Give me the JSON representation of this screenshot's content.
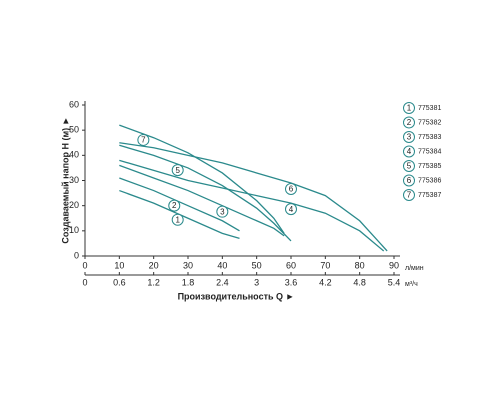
{
  "chart_data": {
    "type": "line",
    "y_label": "Создаваемый напор H (м) ►",
    "x_label": "Производительность Q ►",
    "x_unit": "л/мин",
    "x2_unit": "м³/ч",
    "xlim": [
      0,
      90
    ],
    "xticks": [
      0,
      10,
      20,
      30,
      40,
      50,
      60,
      70,
      80,
      90
    ],
    "x2lim": [
      0,
      5.4
    ],
    "x2ticks": [
      0,
      0.6,
      1.2,
      1.8,
      2.4,
      3.0,
      3.6,
      4.2,
      4.8,
      5.4
    ],
    "ylim": [
      0,
      60
    ],
    "yticks": [
      0,
      10,
      20,
      30,
      40,
      50,
      60
    ],
    "grid": false,
    "legend": "right",
    "series": [
      {
        "label": "1",
        "name": "775381",
        "color": "#2b8a8c",
        "x": [
          10,
          20,
          30,
          40,
          45
        ],
        "values": [
          26,
          21,
          15,
          9,
          7
        ]
      },
      {
        "label": "2",
        "name": "775382",
        "color": "#2b8a8c",
        "x": [
          10,
          20,
          30,
          40,
          45
        ],
        "values": [
          31,
          26,
          20,
          14,
          10
        ]
      },
      {
        "label": "3",
        "name": "775383",
        "color": "#2b8a8c",
        "x": [
          10,
          20,
          30,
          40,
          50,
          55,
          58
        ],
        "values": [
          36,
          31,
          26,
          20,
          14,
          11,
          8
        ]
      },
      {
        "label": "4",
        "name": "775384",
        "color": "#2b8a8c",
        "x": [
          10,
          20,
          30,
          40,
          50,
          60,
          70,
          80,
          87
        ],
        "values": [
          38,
          34,
          30,
          27,
          24,
          21,
          17,
          10,
          2
        ]
      },
      {
        "label": "5",
        "name": "775385",
        "color": "#2b8a8c",
        "x": [
          10,
          20,
          30,
          40,
          50,
          55,
          60
        ],
        "values": [
          44,
          40,
          35,
          28,
          19,
          13,
          6
        ]
      },
      {
        "label": "6",
        "name": "775386",
        "color": "#2b8a8c",
        "x": [
          10,
          20,
          30,
          40,
          50,
          60,
          70,
          80,
          88
        ],
        "values": [
          45,
          43,
          40,
          37,
          33,
          29,
          24,
          14,
          2
        ]
      },
      {
        "label": "7",
        "name": "775387",
        "color": "#2b8a8c",
        "x": [
          10,
          20,
          30,
          40,
          50,
          55,
          58
        ],
        "values": [
          52,
          47,
          41,
          33,
          22,
          15,
          9
        ]
      }
    ]
  }
}
